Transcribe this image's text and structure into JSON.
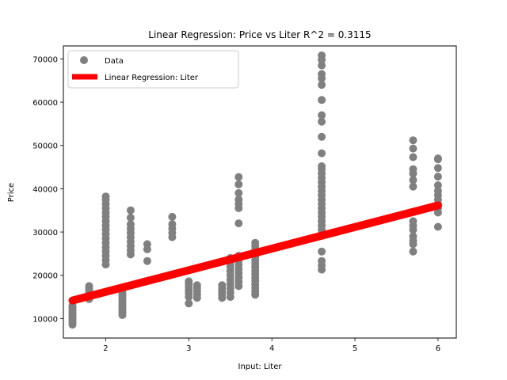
{
  "chart_data": {
    "type": "scatter",
    "title": "Linear Regression: Price vs Liter  R^2 = 0.3115",
    "xlabel": "Input: Liter",
    "ylabel": "Price",
    "xlim": [
      1.49,
      6.22
    ],
    "ylim": [
      5500,
      73000
    ],
    "xticks": [
      2,
      3,
      4,
      5,
      6
    ],
    "yticks": [
      10000,
      20000,
      30000,
      40000,
      50000,
      60000,
      70000
    ],
    "legend_position": "upper-left",
    "colors": {
      "data": "#808080",
      "line": "#ff0000"
    },
    "series": [
      {
        "name": "Data",
        "kind": "scatter",
        "points": [
          [
            1.6,
            8600
          ],
          [
            1.6,
            9000
          ],
          [
            1.6,
            9400
          ],
          [
            1.6,
            9800
          ],
          [
            1.6,
            10200
          ],
          [
            1.6,
            10600
          ],
          [
            1.6,
            11000
          ],
          [
            1.6,
            11400
          ],
          [
            1.6,
            11800
          ],
          [
            1.6,
            12200
          ],
          [
            1.6,
            12600
          ],
          [
            1.6,
            13000
          ],
          [
            1.8,
            14500
          ],
          [
            1.8,
            15000
          ],
          [
            1.8,
            15500
          ],
          [
            1.8,
            16000
          ],
          [
            1.8,
            16500
          ],
          [
            1.8,
            17000
          ],
          [
            1.8,
            17500
          ],
          [
            2.0,
            22500
          ],
          [
            2.0,
            23500
          ],
          [
            2.0,
            24500
          ],
          [
            2.0,
            25500
          ],
          [
            2.0,
            26500
          ],
          [
            2.0,
            27500
          ],
          [
            2.0,
            28500
          ],
          [
            2.0,
            29500
          ],
          [
            2.0,
            30500
          ],
          [
            2.0,
            31500
          ],
          [
            2.0,
            32500
          ],
          [
            2.0,
            33500
          ],
          [
            2.0,
            34500
          ],
          [
            2.0,
            35500
          ],
          [
            2.0,
            36500
          ],
          [
            2.0,
            37500
          ],
          [
            2.0,
            38200
          ],
          [
            2.2,
            10800
          ],
          [
            2.2,
            11300
          ],
          [
            2.2,
            11800
          ],
          [
            2.2,
            12300
          ],
          [
            2.2,
            12800
          ],
          [
            2.2,
            13300
          ],
          [
            2.2,
            13800
          ],
          [
            2.2,
            14300
          ],
          [
            2.2,
            14800
          ],
          [
            2.2,
            15300
          ],
          [
            2.2,
            15800
          ],
          [
            2.2,
            16300
          ],
          [
            2.3,
            24800
          ],
          [
            2.3,
            25800
          ],
          [
            2.3,
            26800
          ],
          [
            2.3,
            27800
          ],
          [
            2.3,
            28800
          ],
          [
            2.3,
            29800
          ],
          [
            2.3,
            30800
          ],
          [
            2.3,
            31800
          ],
          [
            2.3,
            33300
          ],
          [
            2.3,
            35000
          ],
          [
            2.5,
            23300
          ],
          [
            2.5,
            26000
          ],
          [
            2.5,
            27200
          ],
          [
            2.8,
            28800
          ],
          [
            2.8,
            29800
          ],
          [
            2.8,
            30800
          ],
          [
            2.8,
            31800
          ],
          [
            2.8,
            33500
          ],
          [
            3.0,
            13500
          ],
          [
            3.0,
            15000
          ],
          [
            3.0,
            15800
          ],
          [
            3.0,
            16500
          ],
          [
            3.0,
            17200
          ],
          [
            3.0,
            18000
          ],
          [
            3.0,
            18600
          ],
          [
            3.1,
            14800
          ],
          [
            3.1,
            15500
          ],
          [
            3.1,
            16300
          ],
          [
            3.1,
            17000
          ],
          [
            3.1,
            17700
          ],
          [
            3.4,
            14800
          ],
          [
            3.4,
            15500
          ],
          [
            3.4,
            16300
          ],
          [
            3.4,
            17000
          ],
          [
            3.4,
            17700
          ],
          [
            3.5,
            15000
          ],
          [
            3.5,
            16000
          ],
          [
            3.5,
            17000
          ],
          [
            3.5,
            18000
          ],
          [
            3.5,
            19000
          ],
          [
            3.5,
            20000
          ],
          [
            3.5,
            21000
          ],
          [
            3.5,
            22000
          ],
          [
            3.5,
            23000
          ],
          [
            3.5,
            24000
          ],
          [
            3.6,
            17500
          ],
          [
            3.6,
            18500
          ],
          [
            3.6,
            19500
          ],
          [
            3.6,
            20500
          ],
          [
            3.6,
            21500
          ],
          [
            3.6,
            22500
          ],
          [
            3.6,
            23500
          ],
          [
            3.6,
            24500
          ],
          [
            3.6,
            32000
          ],
          [
            3.6,
            35500
          ],
          [
            3.6,
            36500
          ],
          [
            3.6,
            37500
          ],
          [
            3.6,
            39000
          ],
          [
            3.6,
            41000
          ],
          [
            3.6,
            42700
          ],
          [
            3.8,
            15500
          ],
          [
            3.8,
            16300
          ],
          [
            3.8,
            17100
          ],
          [
            3.8,
            17900
          ],
          [
            3.8,
            18700
          ],
          [
            3.8,
            19500
          ],
          [
            3.8,
            20300
          ],
          [
            3.8,
            21100
          ],
          [
            3.8,
            21900
          ],
          [
            3.8,
            22700
          ],
          [
            3.8,
            23500
          ],
          [
            3.8,
            24300
          ],
          [
            3.8,
            25100
          ],
          [
            3.8,
            25900
          ],
          [
            3.8,
            26700
          ],
          [
            3.8,
            27500
          ],
          [
            4.6,
            21300
          ],
          [
            4.6,
            22300
          ],
          [
            4.6,
            23300
          ],
          [
            4.6,
            25500
          ],
          [
            4.6,
            29500
          ],
          [
            4.6,
            30500
          ],
          [
            4.6,
            31500
          ],
          [
            4.6,
            32500
          ],
          [
            4.6,
            33500
          ],
          [
            4.6,
            34500
          ],
          [
            4.6,
            35500
          ],
          [
            4.6,
            36500
          ],
          [
            4.6,
            37500
          ],
          [
            4.6,
            38500
          ],
          [
            4.6,
            39500
          ],
          [
            4.6,
            40500
          ],
          [
            4.6,
            41500
          ],
          [
            4.6,
            42500
          ],
          [
            4.6,
            43500
          ],
          [
            4.6,
            44500
          ],
          [
            4.6,
            45200
          ],
          [
            4.6,
            48200
          ],
          [
            4.6,
            52000
          ],
          [
            4.6,
            55500
          ],
          [
            4.6,
            57000
          ],
          [
            4.6,
            60500
          ],
          [
            4.6,
            64000
          ],
          [
            4.6,
            65500
          ],
          [
            4.6,
            66500
          ],
          [
            4.6,
            68500
          ],
          [
            4.6,
            69800
          ],
          [
            4.6,
            70800
          ],
          [
            5.7,
            25500
          ],
          [
            5.7,
            27200
          ],
          [
            5.7,
            28000
          ],
          [
            5.7,
            29000
          ],
          [
            5.7,
            30500
          ],
          [
            5.7,
            31500
          ],
          [
            5.7,
            32500
          ],
          [
            5.7,
            40500
          ],
          [
            5.7,
            42000
          ],
          [
            5.7,
            43500
          ],
          [
            5.7,
            44500
          ],
          [
            5.7,
            47300
          ],
          [
            5.7,
            49300
          ],
          [
            5.7,
            51200
          ],
          [
            6.0,
            31200
          ],
          [
            6.0,
            34500
          ],
          [
            6.0,
            35500
          ],
          [
            6.0,
            36500
          ],
          [
            6.0,
            37500
          ],
          [
            6.0,
            38500
          ],
          [
            6.0,
            39500
          ],
          [
            6.0,
            40800
          ],
          [
            6.0,
            42800
          ],
          [
            6.0,
            44800
          ],
          [
            6.0,
            46800
          ],
          [
            6.0,
            47000
          ]
        ]
      },
      {
        "name": "Linear Regression: Liter",
        "kind": "line",
        "x_range": [
          1.6,
          6.0
        ],
        "slope": 4990,
        "intercept": 6200
      }
    ]
  }
}
